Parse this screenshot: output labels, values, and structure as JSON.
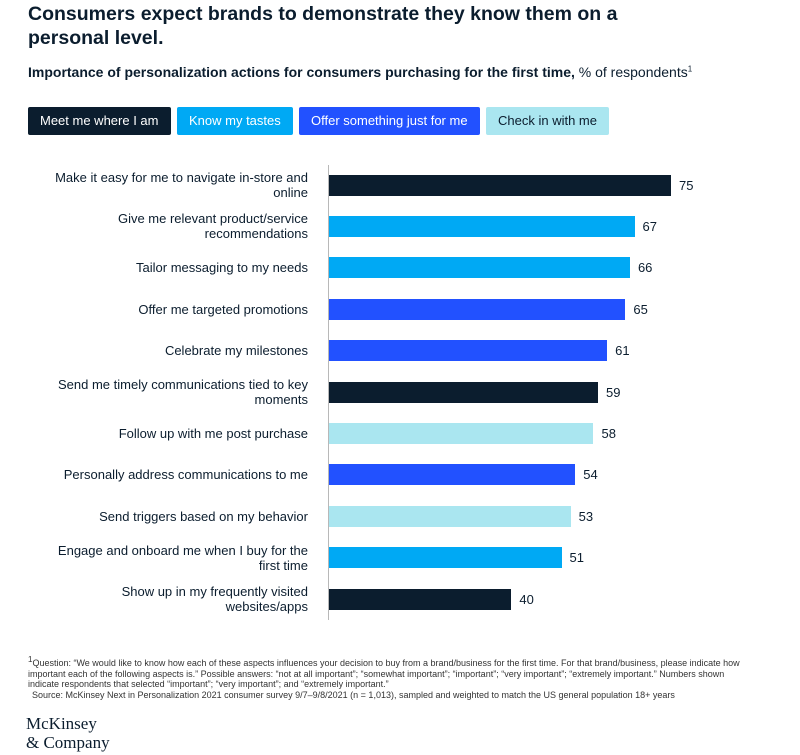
{
  "chart_data": {
    "type": "bar",
    "orientation": "horizontal",
    "title": "Consumers expect brands to demonstrate they know them on a personal level.",
    "subtitle": "Importance of personalization actions for consumers purchasing for the first time,",
    "unit_label": "% of respondents",
    "footnote_marker": "1",
    "categories": [
      "Make it easy for me to navigate in-store and online",
      "Give me relevant product/service recommendations",
      "Tailor messaging to my needs",
      "Offer me targeted promotions",
      "Celebrate my milestones",
      "Send me timely communications tied to key moments",
      "Follow up with me post purchase",
      "Personally address communications to me",
      "Send triggers based on my behavior",
      "Engage and onboard me when I buy for the first time",
      "Show up in my frequently visited websites/apps"
    ],
    "series": [
      {
        "name": "Meet me where I am",
        "color": "#0b1d2e",
        "values": [
          75,
          null,
          null,
          null,
          null,
          59,
          null,
          null,
          null,
          null,
          40
        ]
      },
      {
        "name": "Know my tastes",
        "color": "#00a9f4",
        "values": [
          null,
          67,
          66,
          null,
          null,
          null,
          null,
          null,
          null,
          51,
          null
        ]
      },
      {
        "name": "Offer something just for me",
        "color": "#2251ff",
        "values": [
          null,
          null,
          null,
          65,
          61,
          null,
          null,
          54,
          null,
          null,
          null
        ]
      },
      {
        "name": "Check in with me",
        "color": "#aae6f0",
        "values": [
          null,
          null,
          null,
          null,
          null,
          null,
          58,
          null,
          53,
          null,
          null
        ]
      }
    ],
    "footnote": "Question: “We would like to know how each of these aspects influences your decision to buy from a brand/business for the first time. For that brand/business, please indicate how important each of the following aspects is.” Possible answers: “not at all important”; “somewhat important”; “important”; “very important”; “extremely important.” Numbers shown indicate respondents that selected “important”; “very important”; and “extremely important.”",
    "source": "Source: McKinsey Next in Personalization 2021 consumer survey 9/7–9/8/2021 (n = 1,013), sampled and weighted to match the US general population 18+ years",
    "logo": [
      "McKinsey",
      "& Company"
    ]
  }
}
